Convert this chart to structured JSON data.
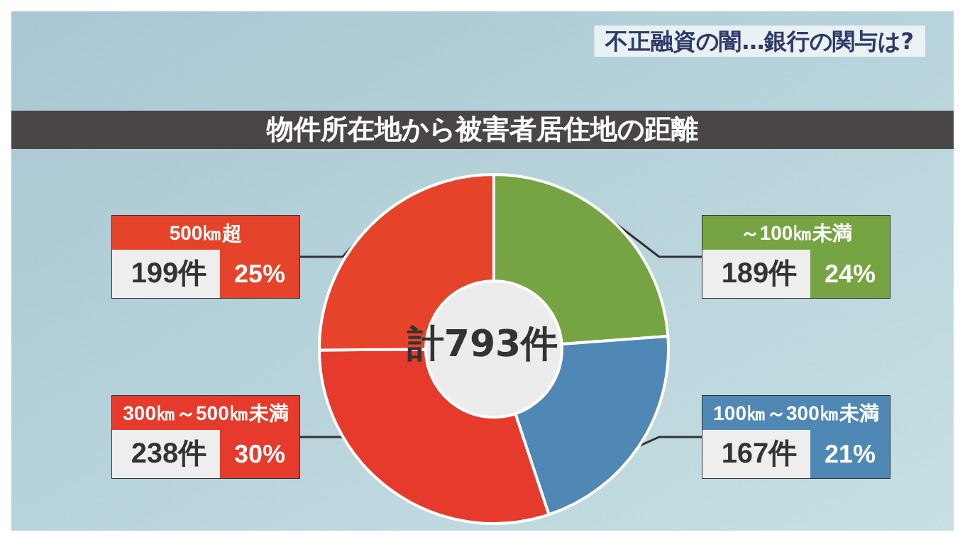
{
  "chart_data": {
    "type": "donut",
    "title": "物件所在地から被害者居住地の距離",
    "annotations": [
      "不正融資の闇…銀行の関与は?",
      "計793件"
    ],
    "categories": [
      "～100㎞未満",
      "100㎞～300㎞未満",
      "300㎞～500㎞未満",
      "500㎞超"
    ],
    "values": [
      189,
      167,
      238,
      199
    ],
    "colors": [
      "#76a443",
      "#4f88b4",
      "#e53a2c",
      "#e5442b"
    ],
    "value_labels": [
      "189件 24%",
      "167件 21%",
      "238件 30%",
      "199件 25%"
    ],
    "legend": false
  }
}
